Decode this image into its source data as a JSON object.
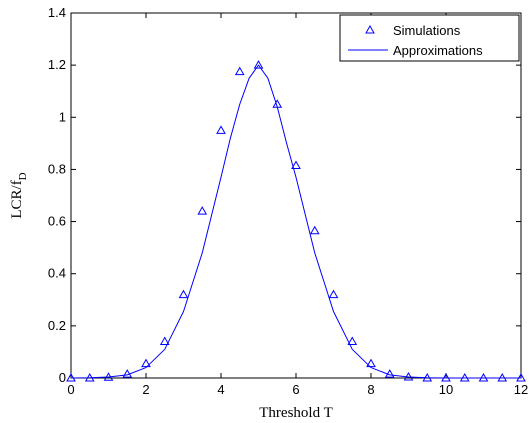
{
  "chart_data": {
    "type": "line",
    "xlabel": "Threshold T",
    "ylabel_main": "LCR/f",
    "ylabel_sub": "D",
    "xlim": [
      0,
      12
    ],
    "ylim": [
      0,
      1.4
    ],
    "xticks": [
      0,
      2,
      4,
      6,
      8,
      10,
      12
    ],
    "yticks": [
      0,
      0.2,
      0.4,
      0.6,
      0.8,
      1,
      1.2,
      1.4
    ],
    "xtick_labels": [
      "0",
      "2",
      "4",
      "6",
      "8",
      "10",
      "12"
    ],
    "ytick_labels": [
      "0",
      "0.2",
      "0.4",
      "0.6",
      "0.8",
      "1",
      "1.2",
      "1.4"
    ],
    "grid": false,
    "legend_position": "top-right",
    "color": "#0000ff",
    "series": [
      {
        "name": "Simulations",
        "marker": "triangle",
        "x": [
          0,
          0.5,
          1,
          1.5,
          2,
          2.5,
          3,
          3.5,
          4,
          4.5,
          5,
          5.5,
          6,
          6.5,
          7,
          7.5,
          8,
          8.5,
          9,
          9.5,
          10,
          10.5,
          11,
          11.5,
          12
        ],
        "y": [
          0,
          0,
          0.003,
          0.015,
          0.055,
          0.14,
          0.32,
          0.64,
          0.95,
          1.175,
          1.2,
          1.05,
          0.815,
          0.565,
          0.32,
          0.14,
          0.055,
          0.015,
          0.004,
          0,
          0,
          0,
          0,
          0,
          0
        ]
      },
      {
        "name": "Approximations",
        "marker": "line",
        "x": [
          0,
          0.5,
          1,
          1.5,
          2,
          2.5,
          3,
          3.5,
          4,
          4.25,
          4.5,
          4.75,
          5,
          5.25,
          5.5,
          5.75,
          6,
          6.5,
          7,
          7.5,
          8,
          8.5,
          9,
          9.5,
          10,
          10.5,
          11,
          11.5,
          12
        ],
        "y": [
          0,
          0.001,
          0.004,
          0.012,
          0.04,
          0.11,
          0.255,
          0.48,
          0.77,
          0.92,
          1.05,
          1.15,
          1.2,
          1.15,
          1.04,
          0.9,
          0.77,
          0.48,
          0.255,
          0.11,
          0.04,
          0.012,
          0.004,
          0.001,
          0,
          0,
          0,
          0,
          0
        ]
      }
    ]
  }
}
